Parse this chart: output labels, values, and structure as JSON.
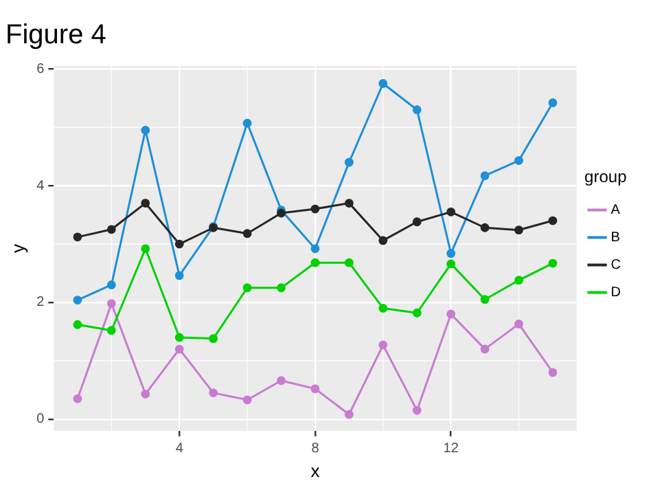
{
  "chart_data": {
    "type": "line",
    "title": "Figure 4",
    "xlabel": "x",
    "ylabel": "y",
    "legend_title": "group",
    "x": [
      1,
      2,
      3,
      4,
      5,
      6,
      7,
      8,
      9,
      10,
      11,
      12,
      13,
      14,
      15
    ],
    "series": [
      {
        "name": "A",
        "color": "#c77cd0",
        "values": [
          0.35,
          1.98,
          0.43,
          1.2,
          0.45,
          0.33,
          0.66,
          0.52,
          0.08,
          1.27,
          0.15,
          1.8,
          1.2,
          1.63,
          0.8
        ]
      },
      {
        "name": "B",
        "color": "#1f8fd8",
        "values": [
          2.04,
          2.3,
          4.95,
          2.46,
          3.3,
          5.07,
          3.58,
          2.92,
          4.4,
          5.75,
          5.3,
          2.84,
          4.17,
          4.43,
          5.42
        ]
      },
      {
        "name": "C",
        "color": "#262626",
        "values": [
          3.12,
          3.25,
          3.7,
          3.0,
          3.28,
          3.18,
          3.53,
          3.6,
          3.7,
          3.06,
          3.38,
          3.55,
          3.28,
          3.24,
          3.4
        ]
      },
      {
        "name": "D",
        "color": "#00d100",
        "values": [
          1.62,
          1.52,
          2.92,
          1.4,
          1.38,
          2.25,
          2.25,
          2.68,
          2.68,
          1.9,
          1.82,
          2.66,
          2.05,
          2.38,
          2.67
        ]
      }
    ],
    "xlim": [
      0.3,
      15.7
    ],
    "xticks": [
      4,
      8,
      12
    ],
    "ylim": [
      -0.2,
      6.05
    ],
    "yticks": [
      0,
      2,
      4,
      6
    ],
    "grid": true,
    "legend": "right",
    "marker": "circle",
    "line_style": "solid"
  }
}
